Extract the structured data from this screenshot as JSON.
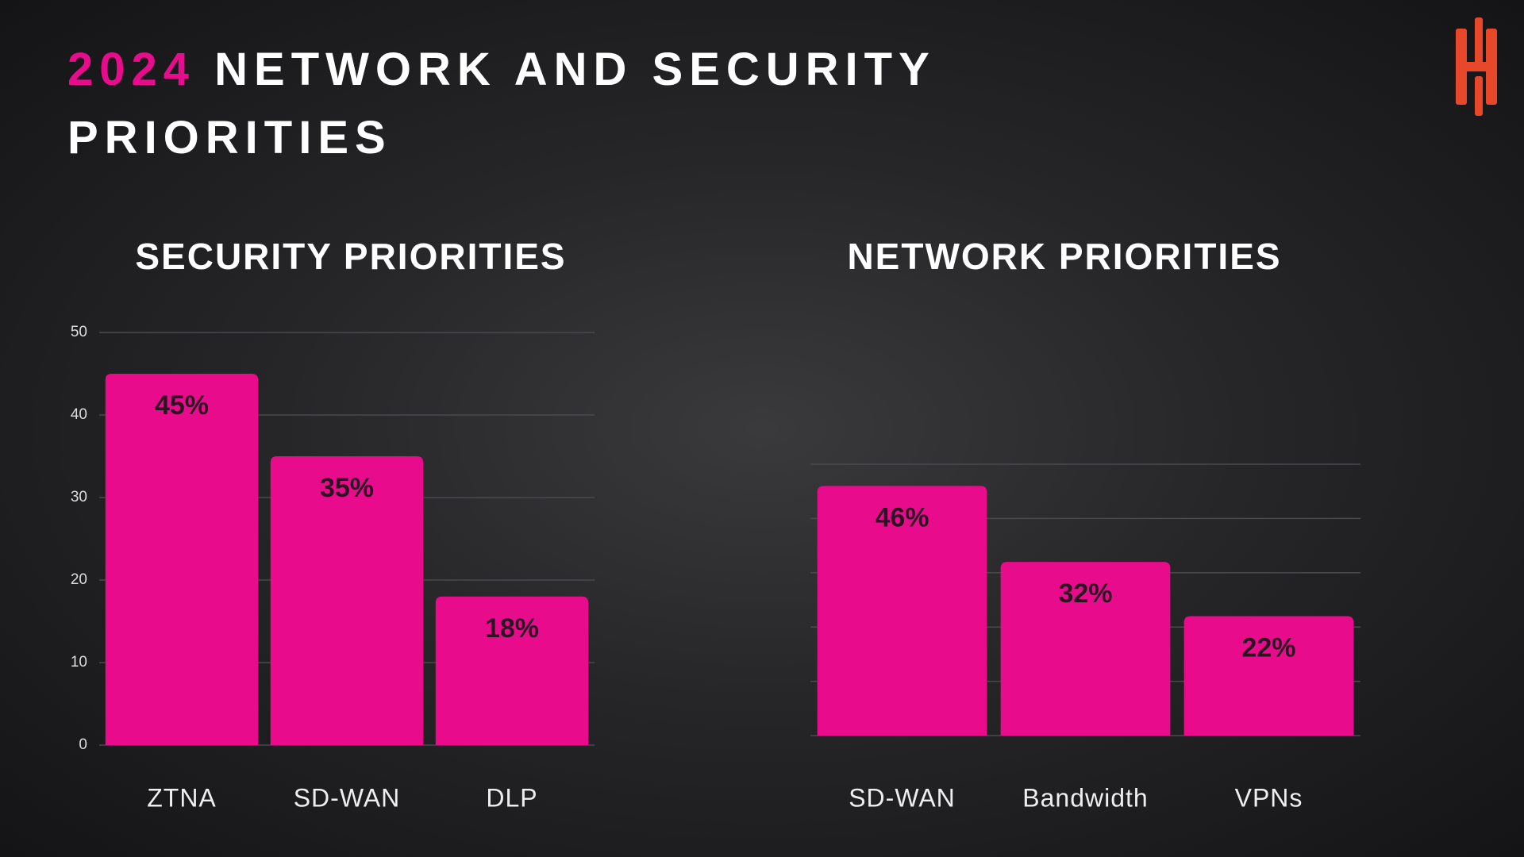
{
  "title": {
    "highlight": "2024",
    "text": "NETWORK AND SECURITY PRIORITIES"
  },
  "chart_data": [
    {
      "type": "bar",
      "title": "SECURITY PRIORITIES",
      "categories": [
        "ZTNA",
        "SD-WAN",
        "DLP"
      ],
      "values": [
        45,
        35,
        18
      ],
      "value_labels": [
        "45%",
        "35%",
        "18%"
      ],
      "color": "#e80b8c",
      "ylim": [
        0,
        50
      ],
      "yticks": [
        0,
        10,
        20,
        30,
        40,
        50
      ],
      "tick_labels": true,
      "grid": true
    },
    {
      "type": "bar",
      "title": "NETWORK PRIORITIES",
      "categories": [
        "SD-WAN",
        "Bandwidth",
        "VPNs"
      ],
      "values": [
        46,
        32,
        22
      ],
      "value_labels": [
        "46%",
        "32%",
        "22%"
      ],
      "color": "#e80b8c",
      "ylim": [
        0,
        50
      ],
      "yticks": [
        0,
        10,
        20,
        30,
        40,
        50
      ],
      "tick_labels": false,
      "grid": true
    }
  ]
}
